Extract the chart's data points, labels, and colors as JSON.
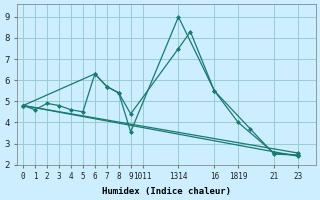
{
  "xlabel": "Humidex (Indice chaleur)",
  "bg_color": "#cceeff",
  "grid_color": "#99cccc",
  "line_color": "#1a7a6e",
  "xlim": [
    -0.5,
    24.5
  ],
  "ylim": [
    2,
    9.6
  ],
  "yticks": [
    2,
    3,
    4,
    5,
    6,
    7,
    8,
    9
  ],
  "xtick_positions": [
    0,
    1,
    2,
    3,
    4,
    5,
    6,
    7,
    8,
    9,
    10,
    13,
    16,
    18,
    21,
    23
  ],
  "xtick_labels": [
    "0",
    "1",
    "2",
    "3",
    "4",
    "5",
    "6",
    "7",
    "8",
    "9",
    "1011",
    "1314",
    "16",
    "1819",
    "21",
    "23"
  ],
  "series": [
    {
      "x": [
        0,
        1,
        2,
        3,
        4,
        5,
        6,
        7,
        8,
        9,
        13,
        16,
        19,
        21,
        23
      ],
      "y": [
        4.8,
        4.6,
        4.9,
        4.8,
        4.6,
        4.5,
        6.3,
        5.7,
        5.4,
        3.55,
        9.0,
        5.5,
        3.7,
        2.5,
        2.45
      ]
    },
    {
      "x": [
        0,
        6,
        7,
        8,
        9,
        13,
        14,
        16,
        18,
        21,
        23
      ],
      "y": [
        4.8,
        6.3,
        5.7,
        5.4,
        4.4,
        7.5,
        8.3,
        5.5,
        4.0,
        2.55,
        2.45
      ]
    },
    {
      "x": [
        0,
        23
      ],
      "y": [
        4.8,
        2.4
      ]
    },
    {
      "x": [
        0,
        23
      ],
      "y": [
        4.8,
        2.55
      ]
    }
  ]
}
